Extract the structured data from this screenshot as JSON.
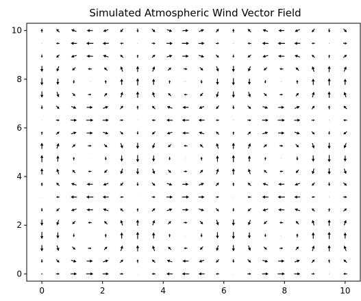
{
  "chart_data": {
    "type": "quiver",
    "title": "Simulated Atmospheric Wind Vector Field",
    "xlabel": "",
    "ylabel": "",
    "xlim": [
      -0.5,
      10.5
    ],
    "ylim": [
      -0.3,
      10.3
    ],
    "xticks": [
      0,
      2,
      4,
      6,
      8,
      10
    ],
    "yticks": [
      0,
      2,
      4,
      6,
      8,
      10
    ],
    "grid": false,
    "x": [
      0.0,
      0.526,
      1.053,
      1.579,
      2.105,
      2.632,
      3.158,
      3.684,
      4.211,
      4.737,
      5.263,
      5.789,
      6.316,
      6.842,
      7.368,
      7.895,
      8.421,
      8.947,
      9.474,
      10.0
    ],
    "y": [
      0.0,
      0.526,
      1.053,
      1.579,
      2.105,
      2.632,
      3.158,
      3.684,
      4.211,
      4.737,
      5.263,
      5.789,
      6.316,
      6.842,
      7.368,
      7.895,
      8.421,
      8.947,
      9.474,
      10.0
    ],
    "u_formula": "sin(x)*cos(y)",
    "v_formula": "-cos(x)*sin(y)",
    "color": "#000000"
  }
}
